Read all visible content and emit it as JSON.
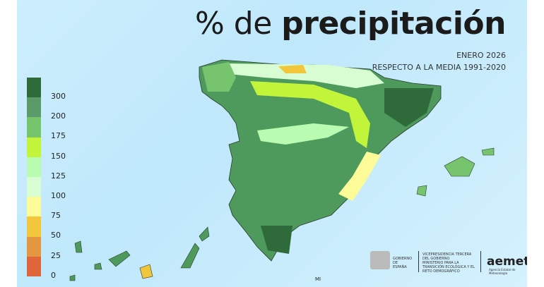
{
  "title": {
    "prefix": "% de ",
    "bold": "precipitación"
  },
  "subtitle": {
    "line1": "ENERO 2026",
    "line2": "RESPECTO A LA MEDIA 1991-2020"
  },
  "legend": {
    "labels": [
      "300",
      "200",
      "175",
      "150",
      "125",
      "100",
      "75",
      "50",
      "25",
      "0"
    ],
    "colors": [
      "#2f6a3b",
      "#5b9b69",
      "#77c46f",
      "#c2f53a",
      "#b9fcb1",
      "#d9fdd2",
      "#fdfb98",
      "#f2c63b",
      "#e49641",
      "#e0653a"
    ]
  },
  "map": {
    "label_mi": "MI",
    "fill_main": "#4e9a5c",
    "fill_dark": "#2f6a3b"
  },
  "logos": {
    "gov": "GOBIERNO DE ESPAÑA",
    "vp": "VICEPRESIDENCIA TERCERA DEL GOBIERNO",
    "ministry": "MINISTERIO PARA LA TRANSICIÓN ECOLÓGICA Y EL RETO DEMOGRÁFICO",
    "aemet": "aemet",
    "aemet_sub": "Agencia Estatal de Meteorología"
  }
}
